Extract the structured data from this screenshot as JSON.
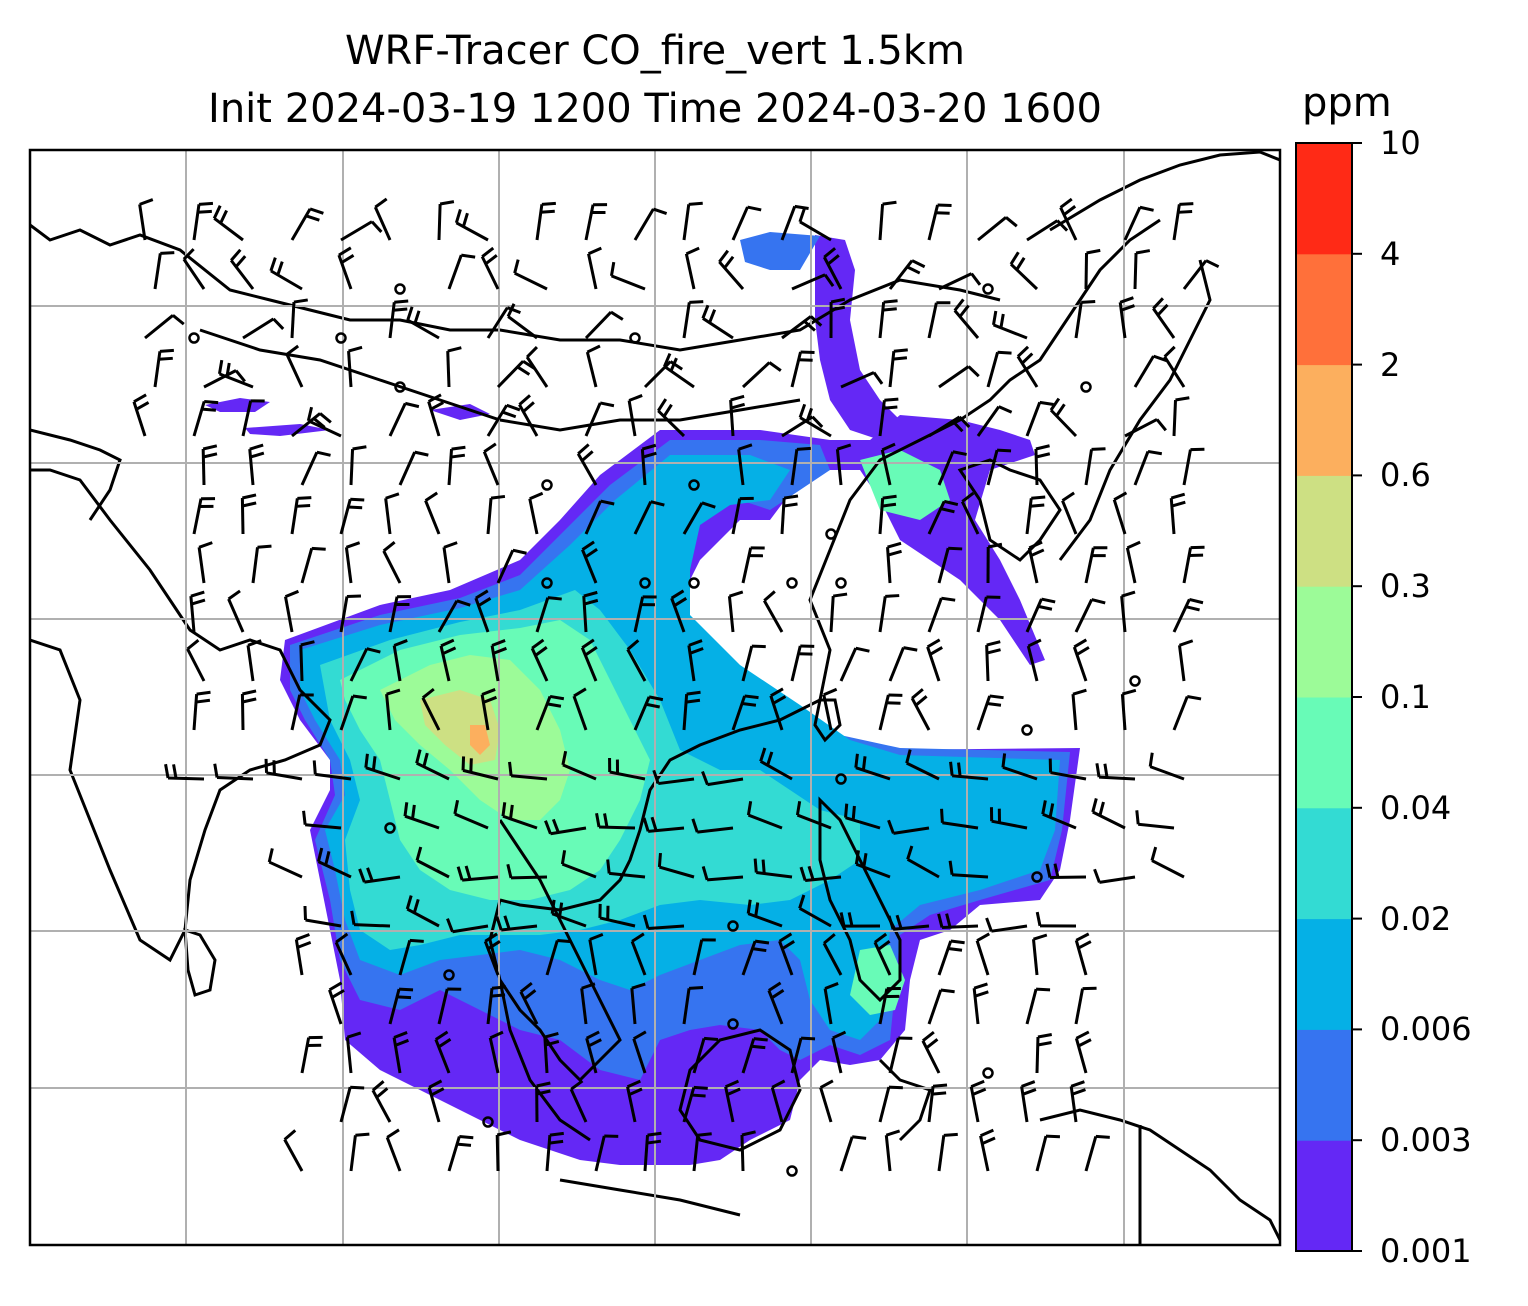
{
  "title": {
    "line1": "WRF-Tracer CO_fire_vert 1.5km",
    "line2": "Init 2024-03-19 1200 Time 2024-03-20 1600"
  },
  "colorbar": {
    "unit": "ppm",
    "levels": [
      "0.001",
      "0.003",
      "0.006",
      "0.02",
      "0.04",
      "0.1",
      "0.3",
      "0.6",
      "2",
      "4",
      "10"
    ],
    "colors": [
      "#6428f5",
      "#3674f0",
      "#05b0e6",
      "#33dbd3",
      "#68fbb7",
      "#9cfb98",
      "#cde083",
      "#fcaf5e",
      "#ff703a",
      "#ff2a16"
    ]
  },
  "colors": {
    "grid": "#b0b0b0",
    "coastline": "#000000",
    "barbs": "#000000"
  }
}
